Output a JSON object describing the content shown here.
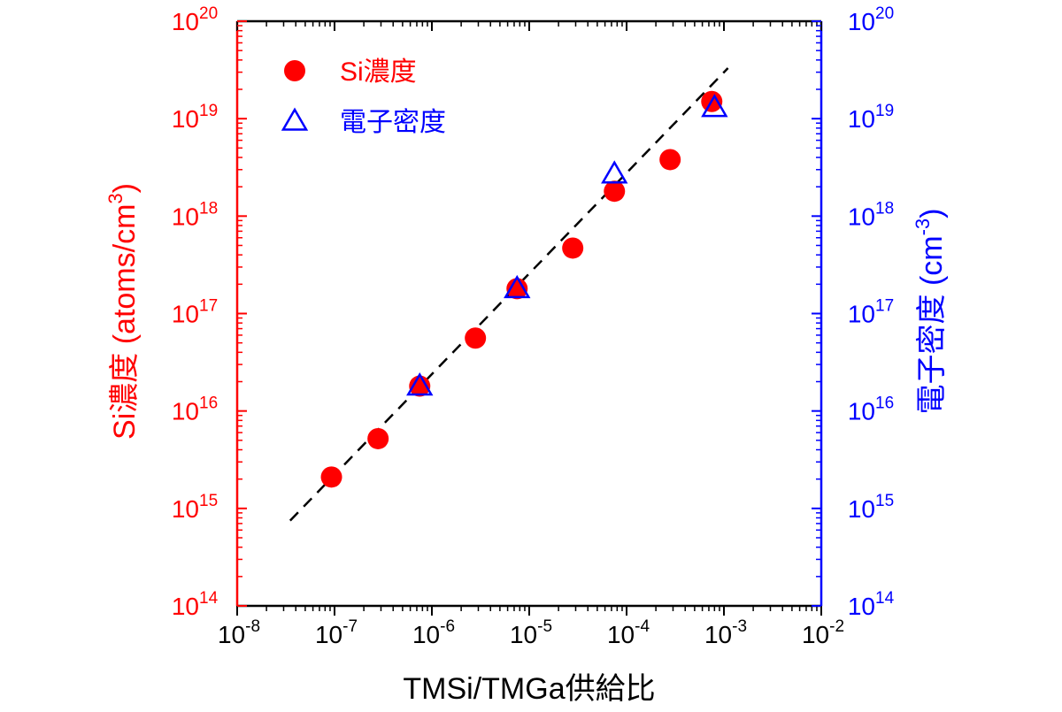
{
  "chart_data": {
    "type": "scatter",
    "xscale": "log",
    "yscale": "log",
    "xlim": [
      1e-08,
      0.01
    ],
    "ylim": [
      100000000000000.0,
      1e+20
    ],
    "y2lim": [
      100000000000000.0,
      1e+20
    ],
    "xlabel": "TMSi/TMGa供給比",
    "ylabel": {
      "main": "Si濃度 (atoms/cm",
      "sup": "3",
      "close": ")"
    },
    "y2label": {
      "main": "電子密度 (cm",
      "sup": "-3",
      "close": ")"
    },
    "x_ticks": [
      {
        "base": "10",
        "exp": "-8"
      },
      {
        "base": "10",
        "exp": "-7"
      },
      {
        "base": "10",
        "exp": "-6"
      },
      {
        "base": "10",
        "exp": "-5"
      },
      {
        "base": "10",
        "exp": "-4"
      },
      {
        "base": "10",
        "exp": "-3"
      },
      {
        "base": "10",
        "exp": "-2"
      }
    ],
    "y_ticks": [
      {
        "base": "10",
        "exp": "14"
      },
      {
        "base": "10",
        "exp": "15"
      },
      {
        "base": "10",
        "exp": "16"
      },
      {
        "base": "10",
        "exp": "17"
      },
      {
        "base": "10",
        "exp": "18"
      },
      {
        "base": "10",
        "exp": "19"
      },
      {
        "base": "10",
        "exp": "20"
      }
    ],
    "y2_ticks": [
      {
        "base": "10",
        "exp": "14"
      },
      {
        "base": "10",
        "exp": "15"
      },
      {
        "base": "10",
        "exp": "16"
      },
      {
        "base": "10",
        "exp": "17"
      },
      {
        "base": "10",
        "exp": "18"
      },
      {
        "base": "10",
        "exp": "19"
      },
      {
        "base": "10",
        "exp": "20"
      }
    ],
    "series": [
      {
        "name": "Si濃度",
        "marker": "filled-circle",
        "color": "#ff0000",
        "axis": "left",
        "points": [
          {
            "x": 9.3e-08,
            "y": 2100000000000000.0
          },
          {
            "x": 2.8e-07,
            "y": 5200000000000000.0
          },
          {
            "x": 7.5e-07,
            "y": 1.8e+16
          },
          {
            "x": 2.8e-06,
            "y": 5.6e+16
          },
          {
            "x": 7.5e-06,
            "y": 1.8e+17
          },
          {
            "x": 2.8e-05,
            "y": 4.7e+17
          },
          {
            "x": 7.5e-05,
            "y": 1.8e+18
          },
          {
            "x": 0.00028,
            "y": 3.8e+18
          },
          {
            "x": 0.00075,
            "y": 1.5e+19
          }
        ]
      },
      {
        "name": "電子密度",
        "marker": "open-triangle",
        "color": "#0000ff",
        "axis": "right",
        "points": [
          {
            "x": 7.5e-07,
            "y": 1.8e+16
          },
          {
            "x": 7.5e-06,
            "y": 1.8e+17
          },
          {
            "x": 7.5e-05,
            "y": 2.7e+18
          },
          {
            "x": 0.0008,
            "y": 1.3e+19
          }
        ]
      }
    ],
    "fit_line": {
      "style": "dashed",
      "color": "#000000",
      "from": {
        "x": 3.5e-08,
        "y": 750000000000000.0
      },
      "to": {
        "x": 0.0011,
        "y": 3.3e+19
      }
    },
    "legend": {
      "placement": "top-left"
    },
    "grid": false,
    "colors": {
      "left_axis": "#ff0000",
      "right_axis": "#0000ff",
      "frame": "#000000"
    }
  }
}
